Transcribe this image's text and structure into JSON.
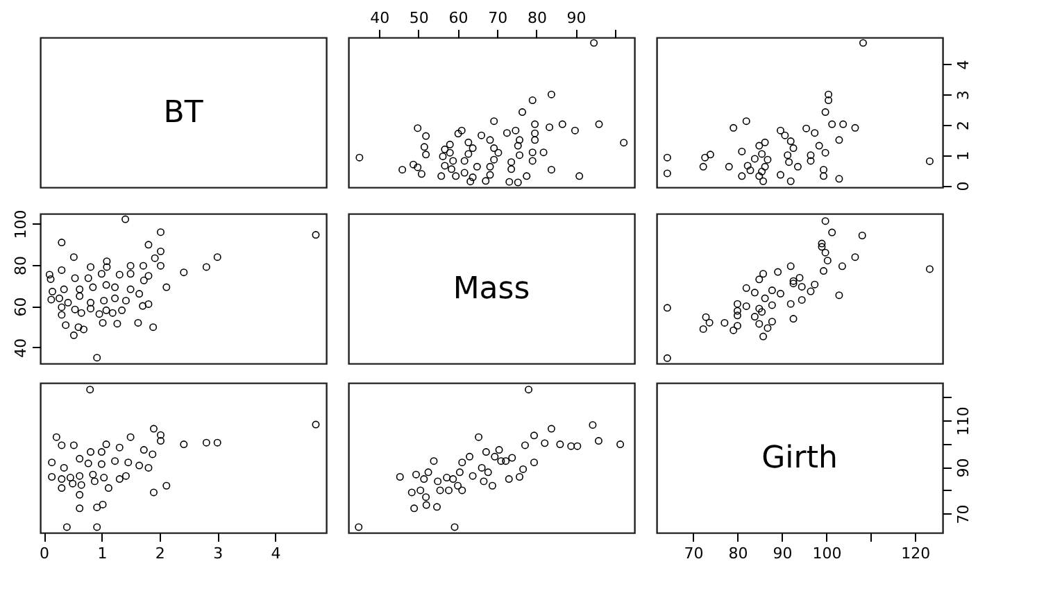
{
  "chart_data": [
    {
      "type": "other",
      "title": "BT"
    },
    {
      "type": "scatter",
      "marker": "circle",
      "xlim": [
        32.2,
        104.9
      ],
      "ylim": [
        -0.06,
        4.88
      ],
      "xticks": [
        40,
        50,
        60,
        70,
        80,
        90,
        {
          "value": 100,
          "label": null
        }
      ],
      "tick_labels": "x",
      "x": [
        102.2,
        90.9,
        95.9,
        89.8,
        86.6,
        83.3,
        83.8,
        83.8,
        79.0,
        76.4,
        79.6,
        81.8,
        79.0,
        79.6,
        79.6,
        75.3,
        77.5,
        79.0,
        73.1,
        73.6,
        73.6,
        75.7,
        75.3,
        75.7,
        74.7,
        69.2,
        72.5,
        67.1,
        68.2,
        68.2,
        69.2,
        70.3,
        69.2,
        68.2,
        66.0,
        63.2,
        63.8,
        61.7,
        64.9,
        61.7,
        62.7,
        62.7,
        63.8,
        61.0,
        60.1,
        59.5,
        58.4,
        58.8,
        58.0,
        58.0,
        55.8,
        56.7,
        56.2,
        56.7,
        50.8,
        49.8,
        45.9,
        48.7,
        51.9,
        51.5,
        51.9,
        49.8,
        35.0,
        94.6
      ],
      "values": [
        1.41,
        0.31,
        2.02,
        1.81,
        2.02,
        1.92,
        0.52,
        3.0,
        2.81,
        2.42,
        2.02,
        1.09,
        1.09,
        1.5,
        1.72,
        0.1,
        0.31,
        0.81,
        0.12,
        0.54,
        0.77,
        1.0,
        1.31,
        1.5,
        1.81,
        2.12,
        1.73,
        0.15,
        0.35,
        0.62,
        0.85,
        1.08,
        1.23,
        1.5,
        1.65,
        0.13,
        0.27,
        0.42,
        0.62,
        0.81,
        1.04,
        1.42,
        1.23,
        1.81,
        1.71,
        0.31,
        0.54,
        0.81,
        1.08,
        1.35,
        0.31,
        0.65,
        0.96,
        1.19,
        0.38,
        0.6,
        0.52,
        0.69,
        1.02,
        1.27,
        1.63,
        1.89,
        0.92,
        4.7
      ]
    },
    {
      "type": "scatter",
      "marker": "circle",
      "xlim": [
        61.8,
        126.2
      ],
      "ylim": [
        -0.06,
        4.88
      ],
      "yticks": [
        0,
        1,
        2,
        3,
        4
      ],
      "tick_labels": "y",
      "x": [
        123.3,
        106.5,
        103.8,
        101.3,
        102.9,
        99.4,
        99.4,
        102.9,
        99.8,
        100.5,
        100.5,
        99.8,
        98.4,
        96.5,
        96.5,
        97.4,
        95.5,
        92.0,
        89.7,
        93.6,
        91.6,
        91.3,
        92.6,
        92.0,
        90.7,
        89.7,
        85.8,
        84.9,
        85.5,
        86.2,
        86.8,
        85.5,
        84.9,
        86.2,
        81.0,
        82.9,
        82.3,
        83.9,
        81.0,
        78.1,
        79.1,
        82.0,
        72.3,
        72.7,
        73.9,
        64.2,
        64.2,
        108.3
      ],
      "values": [
        0.8,
        1.9,
        2.02,
        2.02,
        0.22,
        0.31,
        0.52,
        1.5,
        2.42,
        2.81,
        3.0,
        1.08,
        1.31,
        0.81,
        1.0,
        1.73,
        1.88,
        0.14,
        0.35,
        0.62,
        0.77,
        1.0,
        1.23,
        1.46,
        1.65,
        1.81,
        0.14,
        0.31,
        0.46,
        0.62,
        0.85,
        1.04,
        1.31,
        1.42,
        0.31,
        0.5,
        0.65,
        0.88,
        1.12,
        0.62,
        1.9,
        2.12,
        0.62,
        0.92,
        1.02,
        0.4,
        0.92,
        4.7
      ]
    },
    {
      "type": "scatter",
      "marker": "circle",
      "xlim": [
        -0.06,
        4.88
      ],
      "ylim": [
        32.2,
        104.9
      ],
      "yticks": [
        40,
        60,
        80,
        100
      ],
      "tick_labels": "y",
      "x": [
        1.41,
        0.31,
        2.02,
        1.81,
        2.02,
        1.92,
        0.52,
        3.0,
        2.81,
        2.42,
        2.02,
        1.09,
        1.09,
        1.5,
        1.72,
        0.1,
        0.31,
        0.81,
        0.12,
        0.54,
        0.77,
        1.0,
        1.31,
        1.5,
        1.81,
        2.12,
        1.73,
        0.15,
        0.35,
        0.62,
        0.85,
        1.08,
        1.23,
        1.5,
        1.65,
        0.13,
        0.27,
        0.42,
        0.62,
        0.81,
        1.04,
        1.42,
        1.23,
        1.81,
        1.71,
        0.31,
        0.54,
        0.81,
        1.08,
        1.35,
        0.31,
        0.65,
        0.96,
        1.19,
        0.38,
        0.6,
        0.52,
        0.69,
        1.02,
        1.27,
        1.63,
        1.89,
        0.92,
        4.7
      ],
      "values": [
        102.2,
        90.9,
        95.9,
        89.8,
        86.6,
        83.3,
        83.8,
        83.8,
        79.0,
        76.4,
        79.6,
        81.8,
        79.0,
        79.6,
        79.6,
        75.3,
        77.5,
        79.0,
        73.1,
        73.6,
        73.6,
        75.7,
        75.3,
        75.7,
        74.7,
        69.2,
        72.5,
        67.1,
        68.2,
        68.2,
        69.2,
        70.3,
        69.2,
        68.2,
        66.0,
        63.2,
        63.8,
        61.7,
        64.9,
        61.7,
        62.7,
        62.7,
        63.8,
        61.0,
        60.1,
        59.5,
        58.4,
        58.8,
        58.0,
        58.0,
        55.8,
        56.7,
        56.2,
        56.7,
        50.8,
        49.8,
        45.9,
        48.7,
        51.9,
        51.5,
        51.9,
        49.8,
        35.0,
        94.6
      ]
    },
    {
      "type": "other",
      "title": "Mass"
    },
    {
      "type": "scatter",
      "marker": "circle",
      "xlim": [
        61.8,
        126.2
      ],
      "ylim": [
        32.2,
        104.9
      ],
      "tick_labels": false,
      "x": [
        64.2,
        64.2,
        123.3,
        108.1,
        101.3,
        99.8,
        106.5,
        103.6,
        102.9,
        99.0,
        99.0,
        99.8,
        100.3,
        99.4,
        97.4,
        96.5,
        94.0,
        92.6,
        92.0,
        89.1,
        85.8,
        84.9,
        94.5,
        92.0,
        92.6,
        89.7,
        87.8,
        86.2,
        87.8,
        84.9,
        85.5,
        83.9,
        87.8,
        86.8,
        85.8,
        84.9,
        80.0,
        80.0,
        82.0,
        80.0,
        83.9,
        82.0,
        79.1,
        80.0,
        77.1,
        72.3,
        73.7,
        72.9,
        92.6,
        94.5
      ],
      "values": [
        34.8,
        59.2,
        78.0,
        94.3,
        95.8,
        101.3,
        83.8,
        79.4,
        65.3,
        88.8,
        90.4,
        86.0,
        82.1,
        77.1,
        70.5,
        67.2,
        73.8,
        71.0,
        79.4,
        76.6,
        75.7,
        73.0,
        63.0,
        61.1,
        53.9,
        66.1,
        67.7,
        63.8,
        60.5,
        58.8,
        57.2,
        54.9,
        52.5,
        49.4,
        45.3,
        51.4,
        55.5,
        57.7,
        60.0,
        61.1,
        66.6,
        68.8,
        48.3,
        50.5,
        51.9,
        48.9,
        52.0,
        54.7,
        72.2,
        69.4
      ]
    },
    {
      "type": "scatter",
      "marker": "circle",
      "xlim": [
        -0.06,
        4.88
      ],
      "ylim": [
        61.8,
        126.2
      ],
      "xticks": [
        0,
        1,
        2,
        3,
        4
      ],
      "tick_labels": "x",
      "x": [
        0.8,
        1.9,
        2.02,
        2.02,
        0.22,
        0.31,
        0.52,
        1.5,
        2.42,
        2.81,
        3.0,
        1.08,
        1.31,
        0.81,
        1.0,
        1.73,
        1.88,
        0.14,
        0.35,
        0.62,
        0.77,
        1.0,
        1.23,
        1.46,
        1.65,
        1.81,
        0.14,
        0.31,
        0.46,
        0.62,
        0.85,
        1.04,
        1.31,
        1.42,
        0.31,
        0.5,
        0.65,
        0.88,
        1.12,
        0.62,
        1.9,
        2.12,
        0.62,
        0.92,
        1.02,
        0.4,
        0.92,
        4.7
      ],
      "values": [
        123.3,
        106.5,
        103.8,
        101.3,
        102.9,
        99.4,
        99.4,
        102.9,
        99.8,
        100.5,
        100.5,
        99.8,
        98.4,
        96.5,
        96.5,
        97.4,
        95.5,
        92.0,
        89.7,
        93.6,
        91.6,
        91.3,
        92.6,
        92.0,
        90.7,
        89.7,
        85.8,
        84.9,
        85.5,
        86.2,
        86.8,
        85.5,
        84.9,
        86.2,
        81.0,
        82.9,
        82.3,
        83.9,
        81.0,
        78.1,
        79.1,
        82.0,
        72.3,
        72.7,
        73.9,
        64.2,
        64.2,
        108.3
      ]
    },
    {
      "type": "scatter",
      "marker": "circle",
      "xlim": [
        32.2,
        104.9
      ],
      "ylim": [
        61.8,
        126.2
      ],
      "tick_labels": false,
      "x": [
        34.8,
        59.2,
        78.0,
        94.3,
        95.8,
        101.3,
        83.8,
        79.4,
        65.3,
        88.8,
        90.4,
        86.0,
        82.1,
        77.1,
        70.5,
        67.2,
        73.8,
        71.0,
        79.4,
        76.6,
        75.7,
        73.0,
        63.0,
        61.1,
        53.9,
        66.1,
        67.7,
        63.8,
        60.5,
        58.8,
        57.2,
        54.9,
        52.5,
        49.4,
        45.3,
        51.4,
        55.5,
        57.7,
        60.0,
        61.1,
        66.6,
        68.8,
        48.3,
        50.5,
        51.9,
        48.9,
        52.0,
        54.7,
        72.2,
        69.4
      ],
      "values": [
        64.2,
        64.2,
        123.3,
        108.1,
        101.3,
        99.8,
        106.5,
        103.6,
        102.9,
        99.0,
        99.0,
        99.8,
        100.3,
        99.4,
        97.4,
        96.5,
        94.0,
        92.6,
        92.0,
        89.1,
        85.8,
        84.9,
        94.5,
        92.0,
        92.6,
        89.7,
        87.8,
        86.2,
        87.8,
        84.9,
        85.5,
        83.9,
        87.8,
        86.8,
        85.8,
        84.9,
        80.0,
        80.0,
        82.0,
        80.0,
        83.9,
        82.0,
        79.1,
        80.0,
        77.1,
        72.3,
        73.7,
        72.9,
        92.6,
        94.5
      ]
    },
    {
      "type": "scatter",
      "title": "Girth",
      "xlim": [
        61.8,
        126.2
      ],
      "ylim": [
        61.8,
        126.2
      ],
      "xticks": [
        70,
        80,
        90,
        100,
        {
          "value": 110,
          "label": null
        },
        120
      ],
      "yticks": [
        70,
        {
          "value": 80,
          "label": null
        },
        90,
        {
          "value": 100,
          "label": null
        },
        110,
        {
          "value": 120,
          "label": null
        }
      ]
    }
  ]
}
